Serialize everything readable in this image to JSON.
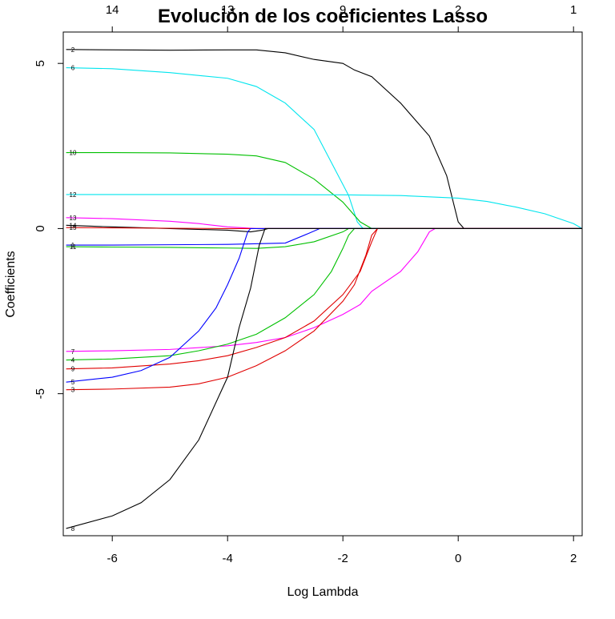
{
  "chart_data": {
    "type": "line",
    "title": "Evolución de los coeficientes Lasso",
    "xlabel": "Log Lambda",
    "ylabel": "Coefficients",
    "xlim": [
      -6.85,
      2.15
    ],
    "ylim": [
      -9.3,
      5.95
    ],
    "x_ticks": [
      -6,
      -4,
      -2,
      0,
      2
    ],
    "x_tick_labels": [
      "-6",
      "-4",
      "-2",
      "0",
      "2"
    ],
    "y_ticks": [
      -5,
      0,
      5
    ],
    "y_tick_labels": [
      "-5",
      "0",
      "5"
    ],
    "top_axis": {
      "ticks": [
        -6,
        -4,
        -2,
        0,
        2
      ],
      "labels": [
        "14",
        "13",
        "9",
        "2",
        "1"
      ]
    },
    "grid": false,
    "legend": "none",
    "series": [
      {
        "label": "2",
        "color": "#000000",
        "points": [
          [
            -6.8,
            5.42
          ],
          [
            -5,
            5.4
          ],
          [
            -4,
            5.41
          ],
          [
            -3.5,
            5.41
          ],
          [
            -3.0,
            5.32
          ],
          [
            -2.5,
            5.12
          ],
          [
            -2.0,
            5.0
          ],
          [
            -1.8,
            4.8
          ],
          [
            -1.5,
            4.6
          ],
          [
            -1.0,
            3.8
          ],
          [
            -0.5,
            2.8
          ],
          [
            -0.2,
            1.6
          ],
          [
            0.0,
            0.2
          ],
          [
            0.1,
            0.0
          ],
          [
            2.15,
            0.0
          ]
        ]
      },
      {
        "label": "6",
        "color": "#00e5ee",
        "points": [
          [
            -6.8,
            4.87
          ],
          [
            -6,
            4.84
          ],
          [
            -5,
            4.72
          ],
          [
            -4,
            4.55
          ],
          [
            -3.5,
            4.3
          ],
          [
            -3.0,
            3.8
          ],
          [
            -2.5,
            3.0
          ],
          [
            -2.2,
            2.0
          ],
          [
            -1.9,
            1.0
          ],
          [
            -1.75,
            0.2
          ],
          [
            -1.65,
            0.0
          ],
          [
            2.15,
            0.0
          ]
        ]
      },
      {
        "label": "10",
        "color": "#00c000",
        "points": [
          [
            -6.8,
            2.3
          ],
          [
            -6,
            2.3
          ],
          [
            -5,
            2.29
          ],
          [
            -4,
            2.25
          ],
          [
            -3.5,
            2.2
          ],
          [
            -3.0,
            2.0
          ],
          [
            -2.5,
            1.5
          ],
          [
            -2.0,
            0.8
          ],
          [
            -1.7,
            0.2
          ],
          [
            -1.5,
            0.0
          ],
          [
            2.15,
            0.0
          ]
        ]
      },
      {
        "label": "12",
        "color": "#00e5ee",
        "points": [
          [
            -6.8,
            1.03
          ],
          [
            -4,
            1.03
          ],
          [
            -2,
            1.02
          ],
          [
            -1,
            1.0
          ],
          [
            0,
            0.92
          ],
          [
            0.5,
            0.82
          ],
          [
            1.0,
            0.65
          ],
          [
            1.5,
            0.45
          ],
          [
            2.0,
            0.15
          ],
          [
            2.15,
            0.0
          ]
        ]
      },
      {
        "label": "13",
        "color": "#ff00ff",
        "points": [
          [
            -6.8,
            0.33
          ],
          [
            -6,
            0.3
          ],
          [
            -5,
            0.22
          ],
          [
            -4.5,
            0.15
          ],
          [
            -4,
            0.05
          ],
          [
            -3.5,
            0.0
          ],
          [
            2.15,
            0.0
          ]
        ]
      },
      {
        "label": "14",
        "color": "#000000",
        "points": [
          [
            -6.8,
            0.1
          ],
          [
            -6,
            0.05
          ],
          [
            -5,
            0.0
          ],
          [
            -4,
            -0.05
          ],
          [
            -3.6,
            -0.1
          ],
          [
            -3.4,
            -0.05
          ],
          [
            -3.3,
            0.0
          ],
          [
            2.15,
            0.0
          ]
        ]
      },
      {
        "label": "15",
        "color": "#e00000",
        "points": [
          [
            -6.8,
            0.03
          ],
          [
            -6,
            0.02
          ],
          [
            -5,
            0.01
          ],
          [
            -4,
            0.0
          ],
          [
            2.15,
            0.0
          ]
        ]
      },
      {
        "label": "1",
        "color": "#0000ff",
        "points": [
          [
            -6.8,
            -0.5
          ],
          [
            -6,
            -0.5
          ],
          [
            -5,
            -0.49
          ],
          [
            -4,
            -0.48
          ],
          [
            -3.0,
            -0.44
          ],
          [
            -2.6,
            -0.15
          ],
          [
            -2.4,
            0.0
          ],
          [
            2.15,
            0.0
          ]
        ]
      },
      {
        "label": "11",
        "color": "#00c000",
        "points": [
          [
            -6.8,
            -0.55
          ],
          [
            -6,
            -0.56
          ],
          [
            -5,
            -0.57
          ],
          [
            -4,
            -0.59
          ],
          [
            -3.5,
            -0.6
          ],
          [
            -3.0,
            -0.55
          ],
          [
            -2.5,
            -0.4
          ],
          [
            -2.0,
            -0.1
          ],
          [
            -1.9,
            0.0
          ],
          [
            2.15,
            0.0
          ]
        ]
      },
      {
        "label": "7",
        "color": "#ff00ff",
        "points": [
          [
            -6.8,
            -3.72
          ],
          [
            -6,
            -3.7
          ],
          [
            -5,
            -3.66
          ],
          [
            -4,
            -3.55
          ],
          [
            -3.5,
            -3.45
          ],
          [
            -3,
            -3.3
          ],
          [
            -2.5,
            -3.0
          ],
          [
            -2,
            -2.6
          ],
          [
            -1.7,
            -2.3
          ],
          [
            -1.5,
            -1.9
          ],
          [
            -1.0,
            -1.3
          ],
          [
            -0.7,
            -0.7
          ],
          [
            -0.5,
            -0.1
          ],
          [
            -0.4,
            0.0
          ],
          [
            2.15,
            0.0
          ]
        ]
      },
      {
        "label": "4",
        "color": "#00c000",
        "points": [
          [
            -6.8,
            -3.98
          ],
          [
            -6,
            -3.95
          ],
          [
            -5,
            -3.85
          ],
          [
            -4.5,
            -3.7
          ],
          [
            -4,
            -3.5
          ],
          [
            -3.5,
            -3.2
          ],
          [
            -3,
            -2.7
          ],
          [
            -2.5,
            -2.0
          ],
          [
            -2.2,
            -1.3
          ],
          [
            -2.0,
            -0.6
          ],
          [
            -1.9,
            -0.2
          ],
          [
            -1.8,
            0.0
          ],
          [
            2.15,
            0.0
          ]
        ]
      },
      {
        "label": "9",
        "color": "#e00000",
        "points": [
          [
            -6.8,
            -4.25
          ],
          [
            -6,
            -4.22
          ],
          [
            -5,
            -4.1
          ],
          [
            -4.5,
            -4.0
          ],
          [
            -4,
            -3.85
          ],
          [
            -3.5,
            -3.6
          ],
          [
            -3,
            -3.3
          ],
          [
            -2.5,
            -2.8
          ],
          [
            -2.0,
            -2.0
          ],
          [
            -1.7,
            -1.3
          ],
          [
            -1.5,
            -0.4
          ],
          [
            -1.4,
            0.0
          ],
          [
            2.15,
            0.0
          ]
        ]
      },
      {
        "label": "5",
        "color": "#0000ff",
        "points": [
          [
            -6.8,
            -4.65
          ],
          [
            -6,
            -4.5
          ],
          [
            -5.5,
            -4.3
          ],
          [
            -5,
            -3.9
          ],
          [
            -4.5,
            -3.1
          ],
          [
            -4.2,
            -2.4
          ],
          [
            -4,
            -1.7
          ],
          [
            -3.8,
            -0.9
          ],
          [
            -3.65,
            -0.1
          ],
          [
            -3.6,
            0.0
          ],
          [
            2.15,
            0.0
          ]
        ]
      },
      {
        "label": "3",
        "color": "#e00000",
        "points": [
          [
            -6.8,
            -4.88
          ],
          [
            -6,
            -4.86
          ],
          [
            -5,
            -4.8
          ],
          [
            -4.5,
            -4.7
          ],
          [
            -4,
            -4.5
          ],
          [
            -3.5,
            -4.15
          ],
          [
            -3,
            -3.7
          ],
          [
            -2.5,
            -3.1
          ],
          [
            -2.0,
            -2.2
          ],
          [
            -1.8,
            -1.7
          ],
          [
            -1.6,
            -0.8
          ],
          [
            -1.5,
            -0.2
          ],
          [
            -1.4,
            0.0
          ],
          [
            2.15,
            0.0
          ]
        ]
      },
      {
        "label": "8",
        "color": "#000000",
        "points": [
          [
            -6.8,
            -9.08
          ],
          [
            -6.0,
            -8.7
          ],
          [
            -5.5,
            -8.3
          ],
          [
            -5.0,
            -7.6
          ],
          [
            -4.5,
            -6.4
          ],
          [
            -4.0,
            -4.5
          ],
          [
            -3.8,
            -3.0
          ],
          [
            -3.6,
            -1.8
          ],
          [
            -3.45,
            -0.5
          ],
          [
            -3.35,
            0.0
          ],
          [
            2.15,
            0.0
          ]
        ]
      }
    ]
  }
}
